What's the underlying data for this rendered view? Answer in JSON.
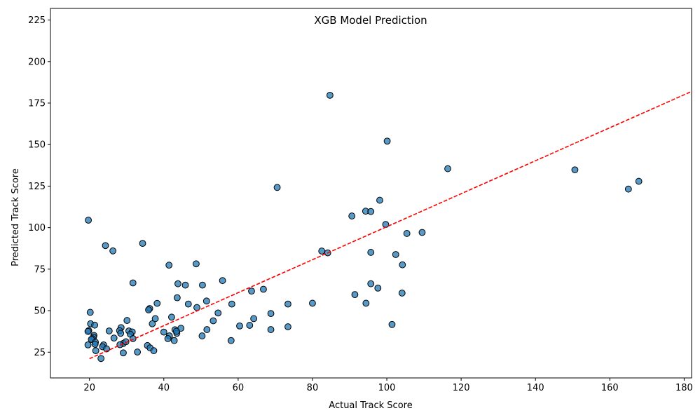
{
  "chart_data": {
    "type": "scatter",
    "title": "XGB Model Prediction",
    "xlabel": "Actual Track Score",
    "ylabel": "Predicted Track Score",
    "xlim": [
      9.5,
      182
    ],
    "ylim": [
      9.5,
      232
    ],
    "xticks": [
      20,
      40,
      60,
      80,
      100,
      120,
      140,
      160,
      180
    ],
    "yticks": [
      25,
      50,
      75,
      100,
      125,
      150,
      175,
      200,
      225
    ],
    "grid": false,
    "point_color": "#1f77b4",
    "point_edge_color": "#000000",
    "reference_line": {
      "style": "dashed",
      "color": "#ff0000",
      "x": [
        20,
        182
      ],
      "y": [
        21.1,
        182
      ]
    },
    "points": [
      [
        84.7,
        179.7
      ],
      [
        100.1,
        152.1
      ],
      [
        116.4,
        135.5
      ],
      [
        150.6,
        134.8
      ],
      [
        167.8,
        127.9
      ],
      [
        165.0,
        123.2
      ],
      [
        70.5,
        124.2
      ],
      [
        98.1,
        116.5
      ],
      [
        94.3,
        109.9
      ],
      [
        95.7,
        109.7
      ],
      [
        90.6,
        107.0
      ],
      [
        99.7,
        101.9
      ],
      [
        19.7,
        104.5
      ],
      [
        105.4,
        96.5
      ],
      [
        109.5,
        97.1
      ],
      [
        34.3,
        90.5
      ],
      [
        24.3,
        89.2
      ],
      [
        26.3,
        86.0
      ],
      [
        82.5,
        85.9
      ],
      [
        84.1,
        84.8
      ],
      [
        95.7,
        85.1
      ],
      [
        102.4,
        83.8
      ],
      [
        48.7,
        78.2
      ],
      [
        41.4,
        77.4
      ],
      [
        104.2,
        77.6
      ],
      [
        55.8,
        68.1
      ],
      [
        43.8,
        66.2
      ],
      [
        31.7,
        66.7
      ],
      [
        45.8,
        65.4
      ],
      [
        50.4,
        65.4
      ],
      [
        95.7,
        66.2
      ],
      [
        97.6,
        63.6
      ],
      [
        66.8,
        62.9
      ],
      [
        63.6,
        61.8
      ],
      [
        104.1,
        60.6
      ],
      [
        91.4,
        59.7
      ],
      [
        43.6,
        57.8
      ],
      [
        51.5,
        55.8
      ],
      [
        38.2,
        54.4
      ],
      [
        46.6,
        54.0
      ],
      [
        58.3,
        54.0
      ],
      [
        73.4,
        54.0
      ],
      [
        80.0,
        54.5
      ],
      [
        94.4,
        54.5
      ],
      [
        48.9,
        51.9
      ],
      [
        36.2,
        51.3
      ],
      [
        35.9,
        50.5
      ],
      [
        20.2,
        49.0
      ],
      [
        54.6,
        48.6
      ],
      [
        68.8,
        48.3
      ],
      [
        42.1,
        46.1
      ],
      [
        37.7,
        45.2
      ],
      [
        64.2,
        45.2
      ],
      [
        30.1,
        44.1
      ],
      [
        53.3,
        43.9
      ],
      [
        20.3,
        42.1
      ],
      [
        21.4,
        41.3
      ],
      [
        36.9,
        42.1
      ],
      [
        60.4,
        40.8
      ],
      [
        63.1,
        41.2
      ],
      [
        73.4,
        40.3
      ],
      [
        101.4,
        41.7
      ],
      [
        28.5,
        39.8
      ],
      [
        44.6,
        39.4
      ],
      [
        19.8,
        38.0
      ],
      [
        19.6,
        37.5
      ],
      [
        25.3,
        37.8
      ],
      [
        28.1,
        38.0
      ],
      [
        30.6,
        37.8
      ],
      [
        31.5,
        37.2
      ],
      [
        43.0,
        38.5
      ],
      [
        51.6,
        38.6
      ],
      [
        68.8,
        38.6
      ],
      [
        28.4,
        36.4
      ],
      [
        31.0,
        35.8
      ],
      [
        40.0,
        37.1
      ],
      [
        43.5,
        36.4
      ],
      [
        43.4,
        37.6
      ],
      [
        21.2,
        35.1
      ],
      [
        21.1,
        34.1
      ],
      [
        20.8,
        33.1
      ],
      [
        26.6,
        33.5
      ],
      [
        31.7,
        33.2
      ],
      [
        41.5,
        34.8
      ],
      [
        41.1,
        33.2
      ],
      [
        42.8,
        32.0
      ],
      [
        50.3,
        34.8
      ],
      [
        58.1,
        32.0
      ],
      [
        20.5,
        32.7
      ],
      [
        21.6,
        31.0
      ],
      [
        21.5,
        29.8
      ],
      [
        19.6,
        29.4
      ],
      [
        23.8,
        29.4
      ],
      [
        29.1,
        30.3
      ],
      [
        29.8,
        31.3
      ],
      [
        35.6,
        29.0
      ],
      [
        23.5,
        28.3
      ],
      [
        24.6,
        27.0
      ],
      [
        28.2,
        29.5
      ],
      [
        36.3,
        27.6
      ],
      [
        21.7,
        25.9
      ],
      [
        29.1,
        24.6
      ],
      [
        32.9,
        25.1
      ],
      [
        37.3,
        25.9
      ],
      [
        23.1,
        21.2
      ]
    ]
  }
}
